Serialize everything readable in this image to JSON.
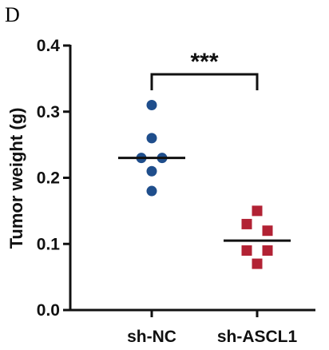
{
  "panel_label": "D",
  "colors": {
    "sh_nc": "#1f4e8c",
    "sh_ascl1": "#b22234",
    "axis": "#111111"
  },
  "chart_data": {
    "type": "scatter",
    "title": "",
    "xlabel": "",
    "ylabel": "Tumor weight (g)",
    "ylim": [
      0,
      0.4
    ],
    "yticks": [
      "0.0",
      "0.1",
      "0.2",
      "0.3",
      "0.4"
    ],
    "categories": [
      "sh-NC",
      "sh-ASCL1"
    ],
    "grid": false,
    "series": [
      {
        "category": "sh-NC",
        "marker": "circle",
        "color": "#1f4e8c",
        "points": [
          {
            "offset": 0,
            "y": 0.31
          },
          {
            "offset": 0,
            "y": 0.26
          },
          {
            "offset": -1,
            "y": 0.23
          },
          {
            "offset": 1,
            "y": 0.23
          },
          {
            "offset": 0,
            "y": 0.21
          },
          {
            "offset": 0,
            "y": 0.18
          }
        ],
        "mean": 0.23
      },
      {
        "category": "sh-ASCL1",
        "marker": "square",
        "color": "#b22234",
        "points": [
          {
            "offset": 0,
            "y": 0.15
          },
          {
            "offset": -1,
            "y": 0.13
          },
          {
            "offset": 1,
            "y": 0.12
          },
          {
            "offset": -1,
            "y": 0.09
          },
          {
            "offset": 1,
            "y": 0.09
          },
          {
            "offset": 0,
            "y": 0.07
          }
        ],
        "mean": 0.105
      }
    ],
    "significance": {
      "between": [
        "sh-NC",
        "sh-ASCL1"
      ],
      "label": "***"
    }
  }
}
